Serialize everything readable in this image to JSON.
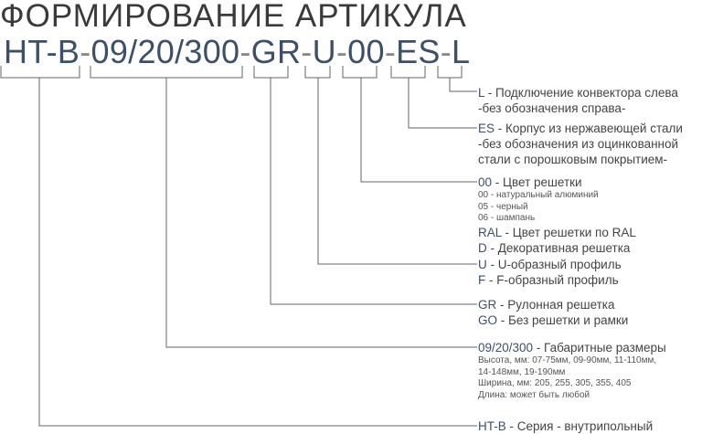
{
  "title": "ФОРМИРОВАНИЕ АРТИКУЛА",
  "code_parts": [
    "HT-B",
    "09/20/300",
    "GR",
    "U",
    "00",
    "ES",
    "L"
  ],
  "separator": "-",
  "colors": {
    "code": "#3d5068",
    "text": "#444444",
    "lines": "#666666"
  },
  "legend": {
    "L": {
      "code": "L",
      "sep": " - ",
      "desc": " Подключение конвектора слева",
      "note": "-без обозначения справа-"
    },
    "ES": {
      "code": "ES",
      "sep": " - ",
      "desc": " Корпус из нержавеющей стали",
      "note1": "-без обозначения из оцинкованной",
      "note2": "стали с порошковым покрытием-"
    },
    "color": {
      "code": "00",
      "sep": " - ",
      "desc": " Цвет решетки",
      "options": [
        "00 - натуральный алюминий",
        "05 - черный",
        "06 - шампань"
      ],
      "ral_code": "RAL",
      "ral_desc": " -  Цвет решетки по RAL",
      "d_code": "D",
      "d_desc": " -  Декоративная решетка"
    },
    "profile": {
      "u_code": "U",
      "u_desc": " -  U-образный профиль",
      "f_code": "F",
      "f_desc": " -  F-образный профиль"
    },
    "grille": {
      "gr_code": "GR",
      "gr_desc": " -  Рулонная решетка",
      "go_code": "GO",
      "go_desc": " -  Без решетки и рамки"
    },
    "size": {
      "code": "09/20/300",
      "desc": " - Габаритные размеры",
      "lines": [
        "Высота, мм: 07-75мм, 09-90мм, 11-110мм,",
        "14-148мм, 19-190мм",
        "Ширина, мм: 205, 255, 305, 355, 405",
        "Длина: может быть любой"
      ]
    },
    "series": {
      "code": "HT-B",
      "desc": " - Серия - внутрипольный"
    }
  }
}
